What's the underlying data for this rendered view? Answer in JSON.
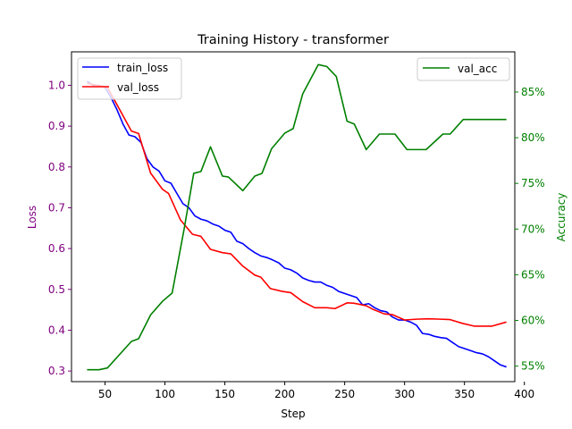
{
  "chart_data": {
    "type": "line",
    "title": "Training History - transformer",
    "xlabel": "Step",
    "ylabel_left": "Loss",
    "ylabel_right": "Accuracy",
    "xlim": [
      22,
      392
    ],
    "ylim_left": [
      0.274,
      1.082
    ],
    "ylim_right": [
      0.533,
      0.894
    ],
    "x_ticks": [
      50,
      100,
      150,
      200,
      250,
      300,
      350,
      400
    ],
    "y_left_ticks": [
      0.3,
      0.4,
      0.5,
      0.6,
      0.7,
      0.8,
      0.9,
      1.0
    ],
    "y_left_tick_labels": [
      "0.3",
      "0.4",
      "0.5",
      "0.6",
      "0.7",
      "0.8",
      "0.9",
      "1.0"
    ],
    "y_right_ticks": [
      0.55,
      0.6,
      0.65,
      0.7,
      0.75,
      0.8,
      0.85
    ],
    "y_right_tick_labels": [
      "55%",
      "60%",
      "65%",
      "70%",
      "75%",
      "80%",
      "85%"
    ],
    "colors": {
      "train_loss": "#0000ff",
      "val_loss": "#ff0000",
      "val_acc": "#008000",
      "left_axis": "#800080",
      "right_axis": "#008000"
    },
    "legend_left_placement": "top-left",
    "legend_right_placement": "top-right",
    "series": [
      {
        "name": "train_loss",
        "axis": "left",
        "x": [
          35,
          40,
          45,
          50,
          55,
          60,
          65,
          70,
          75,
          80,
          85,
          90,
          95,
          100,
          105,
          110,
          115,
          120,
          125,
          130,
          135,
          140,
          145,
          150,
          155,
          160,
          165,
          170,
          175,
          180,
          185,
          190,
          195,
          200,
          205,
          210,
          215,
          220,
          225,
          230,
          235,
          240,
          245,
          250,
          255,
          260,
          265,
          270,
          275,
          280,
          285,
          290,
          295,
          300,
          305,
          310,
          315,
          320,
          325,
          330,
          335,
          340,
          345,
          350,
          355,
          360,
          365,
          370,
          375,
          380,
          385
        ],
        "values": [
          1.01,
          1.0,
          1.0,
          0.995,
          0.97,
          0.94,
          0.905,
          0.878,
          0.874,
          0.86,
          0.82,
          0.8,
          0.79,
          0.766,
          0.76,
          0.735,
          0.71,
          0.7,
          0.68,
          0.672,
          0.668,
          0.66,
          0.655,
          0.645,
          0.64,
          0.618,
          0.612,
          0.6,
          0.59,
          0.582,
          0.578,
          0.572,
          0.565,
          0.552,
          0.548,
          0.54,
          0.528,
          0.522,
          0.518,
          0.518,
          0.51,
          0.505,
          0.495,
          0.49,
          0.485,
          0.48,
          0.462,
          0.465,
          0.455,
          0.448,
          0.445,
          0.432,
          0.425,
          0.425,
          0.42,
          0.412,
          0.392,
          0.39,
          0.385,
          0.382,
          0.38,
          0.37,
          0.36,
          0.355,
          0.35,
          0.345,
          0.342,
          0.335,
          0.325,
          0.315,
          0.31
        ]
      },
      {
        "name": "val_loss",
        "axis": "left",
        "x": [
          35,
          52,
          72,
          78,
          88,
          98,
          103,
          113,
          123,
          130,
          138,
          148,
          155,
          165,
          175,
          180,
          188,
          198,
          205,
          215,
          225,
          235,
          242,
          252,
          258,
          268,
          273,
          283,
          290,
          300,
          310,
          320,
          330,
          338,
          348,
          358,
          373,
          385
        ],
        "values": [
          1.005,
          0.995,
          0.888,
          0.882,
          0.785,
          0.745,
          0.735,
          0.67,
          0.635,
          0.63,
          0.598,
          0.59,
          0.587,
          0.557,
          0.535,
          0.53,
          0.502,
          0.495,
          0.492,
          0.47,
          0.455,
          0.455,
          0.453,
          0.467,
          0.466,
          0.46,
          0.452,
          0.44,
          0.438,
          0.425,
          0.427,
          0.428,
          0.427,
          0.426,
          0.417,
          0.41,
          0.41,
          0.42
        ]
      },
      {
        "name": "val_acc",
        "axis": "right",
        "x": [
          35,
          45,
          52,
          72,
          78,
          88,
          98,
          106,
          116,
          124,
          130,
          138,
          148,
          153,
          165,
          175,
          181,
          189,
          200,
          207,
          215,
          228,
          235,
          243,
          252,
          258,
          268,
          279,
          292,
          302,
          318,
          332,
          338,
          349,
          358,
          385
        ],
        "values": [
          0.546,
          0.546,
          0.548,
          0.577,
          0.58,
          0.606,
          0.621,
          0.63,
          0.7,
          0.761,
          0.763,
          0.79,
          0.758,
          0.757,
          0.742,
          0.758,
          0.761,
          0.788,
          0.805,
          0.81,
          0.848,
          0.88,
          0.878,
          0.867,
          0.818,
          0.815,
          0.787,
          0.804,
          0.804,
          0.787,
          0.787,
          0.804,
          0.804,
          0.82,
          0.82,
          0.82
        ]
      }
    ]
  }
}
